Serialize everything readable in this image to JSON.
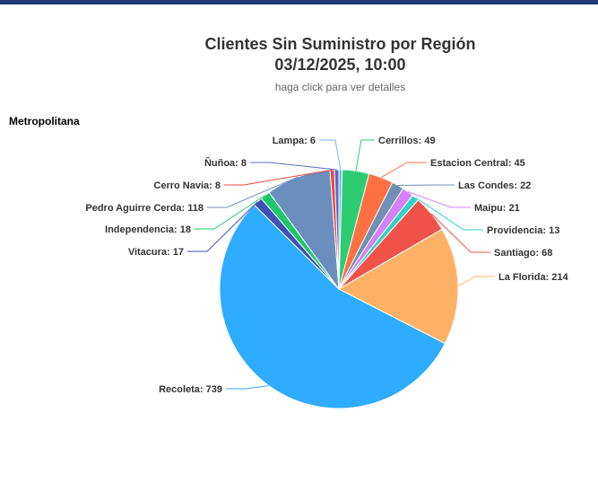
{
  "header": {
    "title_line1": "Clientes Sin Suministro por Región",
    "title_line2": "03/12/2025, 10:00",
    "subtitle": "haga click para ver detalles"
  },
  "region": "Metropolitana",
  "colors": {
    "topbar": "#1f3b73"
  },
  "chart_data": {
    "type": "pie",
    "slices": [
      {
        "name": "Lampa",
        "value": 6,
        "color": "#7cb5ec"
      },
      {
        "name": "Cerrillos",
        "value": 49,
        "color": "#2ecc71"
      },
      {
        "name": "Estacion Central",
        "value": 45,
        "color": "#ff7043"
      },
      {
        "name": "Las Condes",
        "value": 22,
        "color": "#708fb4"
      },
      {
        "name": "Maipu",
        "value": 21,
        "color": "#d580ff"
      },
      {
        "name": "Providencia",
        "value": 13,
        "color": "#2ed3c6"
      },
      {
        "name": "Santiago",
        "value": 68,
        "color": "#f0524a"
      },
      {
        "name": "La Florida",
        "value": 214,
        "color": "#ffb266"
      },
      {
        "name": "Recoleta",
        "value": 739,
        "color": "#2eacff"
      },
      {
        "name": "Vitacura",
        "value": 17,
        "color": "#3f51b5"
      },
      {
        "name": "Independencia",
        "value": 18,
        "color": "#1ec86a"
      },
      {
        "name": "Pedro Aguirre Cerda",
        "value": 118,
        "color": "#6c8ebf"
      },
      {
        "name": "Cerro Navia",
        "value": 8,
        "color": "#e74c3c"
      },
      {
        "name": "Ñuñoa",
        "value": 8,
        "color": "#5c6bc0"
      }
    ]
  }
}
